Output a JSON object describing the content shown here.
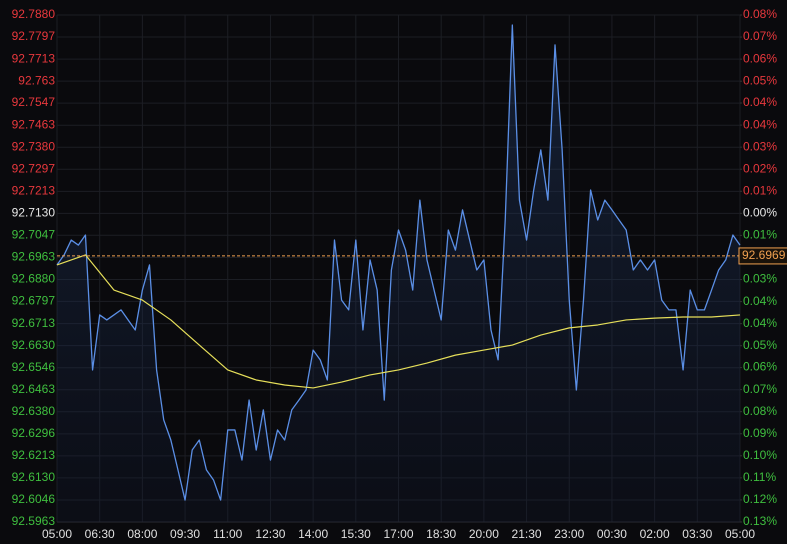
{
  "chart_data": {
    "type": "line",
    "xlim": [
      0,
      24
    ],
    "xticks": [
      {
        "value": 0,
        "label": "05:00"
      },
      {
        "value": 1.5,
        "label": "06:30"
      },
      {
        "value": 3,
        "label": "08:00"
      },
      {
        "value": 4.5,
        "label": "09:30"
      },
      {
        "value": 6,
        "label": "11:00"
      },
      {
        "value": 7.5,
        "label": "12:30"
      },
      {
        "value": 9,
        "label": "14:00"
      },
      {
        "value": 10.5,
        "label": "15:30"
      },
      {
        "value": 12,
        "label": "17:00"
      },
      {
        "value": 13.5,
        "label": "18:30"
      },
      {
        "value": 15,
        "label": "20:00"
      },
      {
        "value": 16.5,
        "label": "21:30"
      },
      {
        "value": 18,
        "label": "23:00"
      },
      {
        "value": 19.5,
        "label": "00:30"
      },
      {
        "value": 21,
        "label": "02:00"
      },
      {
        "value": 22.5,
        "label": "03:30"
      },
      {
        "value": 24,
        "label": "05:00"
      }
    ],
    "ylim": [
      92.5963,
      92.788
    ],
    "yticks": [
      {
        "value": 92.788,
        "label": "92.7880"
      },
      92.7797,
      92.7713,
      92.763,
      92.7547,
      92.7463,
      {
        "value": 92.738,
        "label": "92.7380"
      },
      92.7297,
      92.7213,
      {
        "value": 92.713,
        "label": "92.7130"
      },
      92.7047,
      92.6963,
      {
        "value": 92.688,
        "label": "92.6880"
      },
      92.6797,
      92.6713,
      {
        "value": 92.663,
        "label": "92.6630"
      },
      92.6546,
      92.6463,
      {
        "value": 92.638,
        "label": "92.6380"
      },
      92.6296,
      92.6213,
      {
        "value": 92.613,
        "label": "92.6130"
      },
      92.6046,
      92.5963
    ],
    "y2lim": [
      -0.1259,
      0.0809
    ],
    "y2ticks": [
      {
        "value": 0.0809,
        "label": "0.08%"
      },
      {
        "value": 0.0719,
        "label": "0.07%"
      },
      {
        "value": 0.0629,
        "label": "0.06%"
      },
      {
        "value": 0.0539,
        "label": "0.05%"
      },
      {
        "value": 0.045,
        "label": "0.04%"
      },
      {
        "value": 0.036,
        "label": "0.04%"
      },
      {
        "value": 0.027,
        "label": "0.03%"
      },
      {
        "value": 0.018,
        "label": "0.02%"
      },
      {
        "value": 0.009,
        "label": "0.01%"
      },
      {
        "value": 0,
        "label": "0.00%"
      },
      {
        "value": -0.009,
        "label": "0.01%"
      },
      {
        "value": -0.018,
        "label": "0.02%"
      },
      {
        "value": -0.027,
        "label": "0.03%"
      },
      {
        "value": -0.036,
        "label": "0.04%"
      },
      {
        "value": -0.045,
        "label": "0.04%"
      },
      {
        "value": -0.054,
        "label": "0.05%"
      },
      {
        "value": -0.0629,
        "label": "0.06%"
      },
      {
        "value": -0.0719,
        "label": "0.07%"
      },
      {
        "value": -0.0809,
        "label": "0.08%"
      },
      {
        "value": -0.0899,
        "label": "0.09%"
      },
      {
        "value": -0.0989,
        "label": "0.10%"
      },
      {
        "value": -0.1079,
        "label": "0.11%"
      },
      {
        "value": -0.1169,
        "label": "0.12%"
      },
      {
        "value": -0.1259,
        "label": "0.13%"
      }
    ],
    "up_color": "#e8383d",
    "down_color": "#3fbf3f",
    "flat_color": "#e8e8e8",
    "grid": true,
    "series": [
      {
        "color": "#5b8fe6",
        "area": true,
        "x": [
          0,
          0.25,
          0.5,
          0.75,
          1,
          1.25,
          1.5,
          1.75,
          2,
          2.25,
          2.5,
          2.75,
          3,
          3.25,
          3.5,
          3.75,
          4,
          4.25,
          4.5,
          4.75,
          5,
          5.25,
          5.5,
          5.75,
          6,
          6.25,
          6.5,
          6.75,
          7,
          7.25,
          7.5,
          7.75,
          8,
          8.25,
          8.5,
          8.75,
          9,
          9.25,
          9.5,
          9.75,
          10,
          10.25,
          10.5,
          10.75,
          11,
          11.25,
          11.5,
          11.75,
          12,
          12.25,
          12.5,
          12.75,
          13,
          13.25,
          13.5,
          13.75,
          14,
          14.25,
          14.5,
          14.75,
          15,
          15.25,
          15.5,
          15.75,
          16,
          16.25,
          16.5,
          16.75,
          17,
          17.25,
          17.5,
          17.75,
          18,
          18.25,
          18.5,
          18.75,
          19,
          19.25,
          19.5,
          19.75,
          20,
          20.25,
          20.5,
          20.75,
          21,
          21.25,
          21.5,
          21.75,
          22,
          22.25,
          22.5,
          22.75,
          23,
          23.25,
          23.5,
          23.75,
          24
        ],
        "values": [
          92.6935,
          92.6973,
          92.7029,
          92.701,
          92.7048,
          92.6538,
          92.6746,
          92.6727,
          92.6746,
          92.6765,
          92.6727,
          92.6689,
          92.684,
          92.6935,
          92.6538,
          92.6349,
          92.6273,
          92.616,
          92.6046,
          92.6235,
          92.6273,
          92.616,
          92.6122,
          92.6046,
          92.6311,
          92.6311,
          92.6197,
          92.6424,
          92.6235,
          92.6387,
          92.6197,
          92.6311,
          92.6273,
          92.6387,
          92.6424,
          92.6462,
          92.6613,
          92.6576,
          92.65,
          92.7029,
          92.6802,
          92.6765,
          92.7029,
          92.6689,
          92.6954,
          92.684,
          92.6424,
          92.6916,
          92.7067,
          92.6991,
          92.684,
          92.718,
          92.6954,
          92.684,
          92.6727,
          92.7067,
          92.6991,
          92.7143,
          92.7029,
          92.6916,
          92.6954,
          92.6689,
          92.6576,
          92.7105,
          92.7842,
          92.718,
          92.7029,
          92.7218,
          92.737,
          92.718,
          92.7767,
          92.737,
          92.6802,
          92.6462,
          92.6802,
          92.7218,
          92.7105,
          92.718,
          92.7143,
          92.7105,
          92.7067,
          92.6916,
          92.6954,
          92.6916,
          92.6954,
          92.6802,
          92.6765,
          92.6765,
          92.6538,
          92.684,
          92.6765,
          92.6765,
          92.684,
          92.6916,
          92.6954,
          92.7048,
          92.701
        ]
      },
      {
        "color": "#e6df5a",
        "area": false,
        "x": [
          0,
          1,
          2,
          3,
          4,
          5,
          6,
          7,
          8,
          9,
          10,
          11,
          12,
          13,
          14,
          15,
          16,
          17,
          18,
          19,
          20,
          21,
          22,
          23,
          24
        ],
        "values": [
          92.6935,
          92.6973,
          92.684,
          92.6802,
          92.6727,
          92.6632,
          92.6538,
          92.65,
          92.6481,
          92.647,
          92.6492,
          92.6519,
          92.6538,
          92.6564,
          92.6594,
          92.6613,
          92.6632,
          92.667,
          92.6697,
          92.6708,
          92.6727,
          92.6734,
          92.6738,
          92.6738,
          92.6746
        ]
      }
    ],
    "reference_line": {
      "value": 92.6969,
      "color": "#f0a050"
    }
  }
}
